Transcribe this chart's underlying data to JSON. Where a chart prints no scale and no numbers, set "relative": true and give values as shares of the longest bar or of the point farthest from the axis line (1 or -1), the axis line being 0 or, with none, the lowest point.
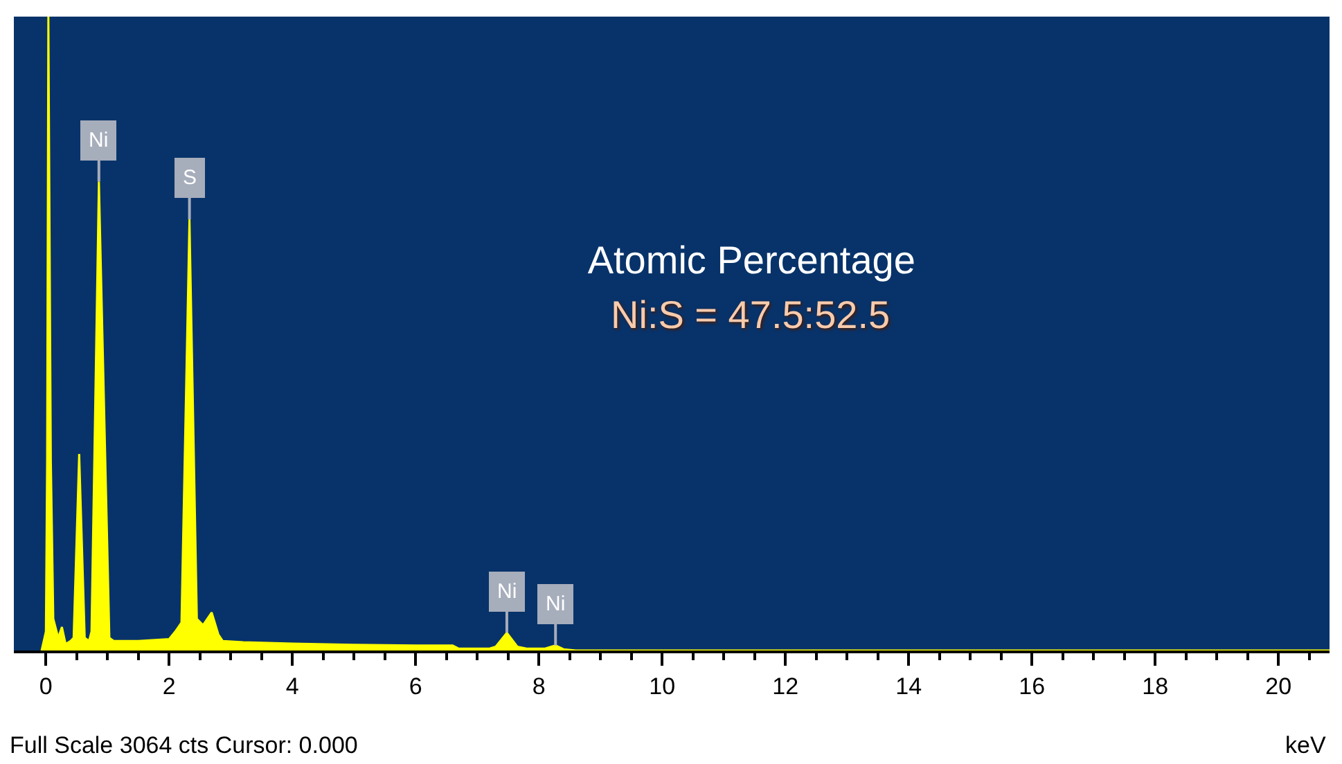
{
  "chart_data": {
    "type": "area",
    "title": "Atomic Percentage",
    "subtitle": "Ni:S = 47.5:52.5",
    "xlabel": "keV",
    "relative": true,
    "grid": false,
    "tick_labels": "x",
    "annotations": [
      "Full Scale 3064 cts Cursor: 0.000",
      {
        "text": "Ni",
        "x": 0.86,
        "y": 0.74
      },
      {
        "text": "S",
        "x": 2.33,
        "y": 0.68
      },
      {
        "text": "Ni",
        "x": 7.48,
        "y": 0.028
      },
      {
        "text": "Ni",
        "x": 8.27,
        "y": 0.008
      }
    ],
    "xlim": [
      -0.52,
      20.83
    ],
    "xticks": [
      0,
      {
        "value": 0.5,
        "label": null
      },
      {
        "value": 1,
        "label": null
      },
      {
        "value": 1.5,
        "label": null
      },
      2,
      {
        "value": 2.5,
        "label": null
      },
      {
        "value": 3,
        "label": null
      },
      {
        "value": 3.5,
        "label": null
      },
      4,
      {
        "value": 4.5,
        "label": null
      },
      {
        "value": 5,
        "label": null
      },
      {
        "value": 5.5,
        "label": null
      },
      6,
      {
        "value": 6.5,
        "label": null
      },
      {
        "value": 7,
        "label": null
      },
      {
        "value": 7.5,
        "label": null
      },
      8,
      {
        "value": 8.5,
        "label": null
      },
      {
        "value": 9,
        "label": null
      },
      {
        "value": 9.5,
        "label": null
      },
      10,
      {
        "value": 10.5,
        "label": null
      },
      {
        "value": 11,
        "label": null
      },
      {
        "value": 11.5,
        "label": null
      },
      12,
      {
        "value": 12.5,
        "label": null
      },
      {
        "value": 13,
        "label": null
      },
      {
        "value": 13.5,
        "label": null
      },
      14,
      {
        "value": 14.5,
        "label": null
      },
      {
        "value": 15,
        "label": null
      },
      {
        "value": 15.5,
        "label": null
      },
      16,
      {
        "value": 16.5,
        "label": null
      },
      {
        "value": 17,
        "label": null
      },
      {
        "value": 17.5,
        "label": null
      },
      18,
      {
        "value": 18.5,
        "label": null
      },
      {
        "value": 19,
        "label": null
      },
      {
        "value": 19.5,
        "label": null
      },
      20,
      {
        "value": 20.5,
        "label": null
      }
    ],
    "series": [
      {
        "color": "#ffff00",
        "x": [
          -0.07,
          0,
          0.02,
          0.04,
          0.08,
          0.12,
          0.2,
          0.26,
          0.32,
          0.4,
          0.45,
          0.54,
          0.63,
          0.7,
          0.74,
          0.86,
          1.03,
          1.1,
          1.5,
          2.0,
          2.1,
          2.2,
          2.33,
          2.45,
          2.55,
          2.69,
          2.8,
          2.87,
          3.2,
          4.0,
          5.0,
          6.0,
          6.6,
          6.7,
          7.2,
          7.3,
          7.48,
          7.65,
          7.8,
          8.1,
          8.27,
          8.4,
          8.6,
          20.83
        ],
        "values": [
          0,
          0.03,
          0.3,
          1,
          0.3,
          0.05,
          0.02,
          0.037,
          0.01,
          0.015,
          0.02,
          0.31,
          0.02,
          0.015,
          0.03,
          0.74,
          0.02,
          0.015,
          0.015,
          0.018,
          0.03,
          0.044,
          0.68,
          0.05,
          0.04,
          0.06,
          0.025,
          0.015,
          0.013,
          0.011,
          0.009,
          0.008,
          0.008,
          0.003,
          0.003,
          0.006,
          0.028,
          0.006,
          0.003,
          0.003,
          0.008,
          0.002,
          0,
          0
        ]
      }
    ]
  }
}
